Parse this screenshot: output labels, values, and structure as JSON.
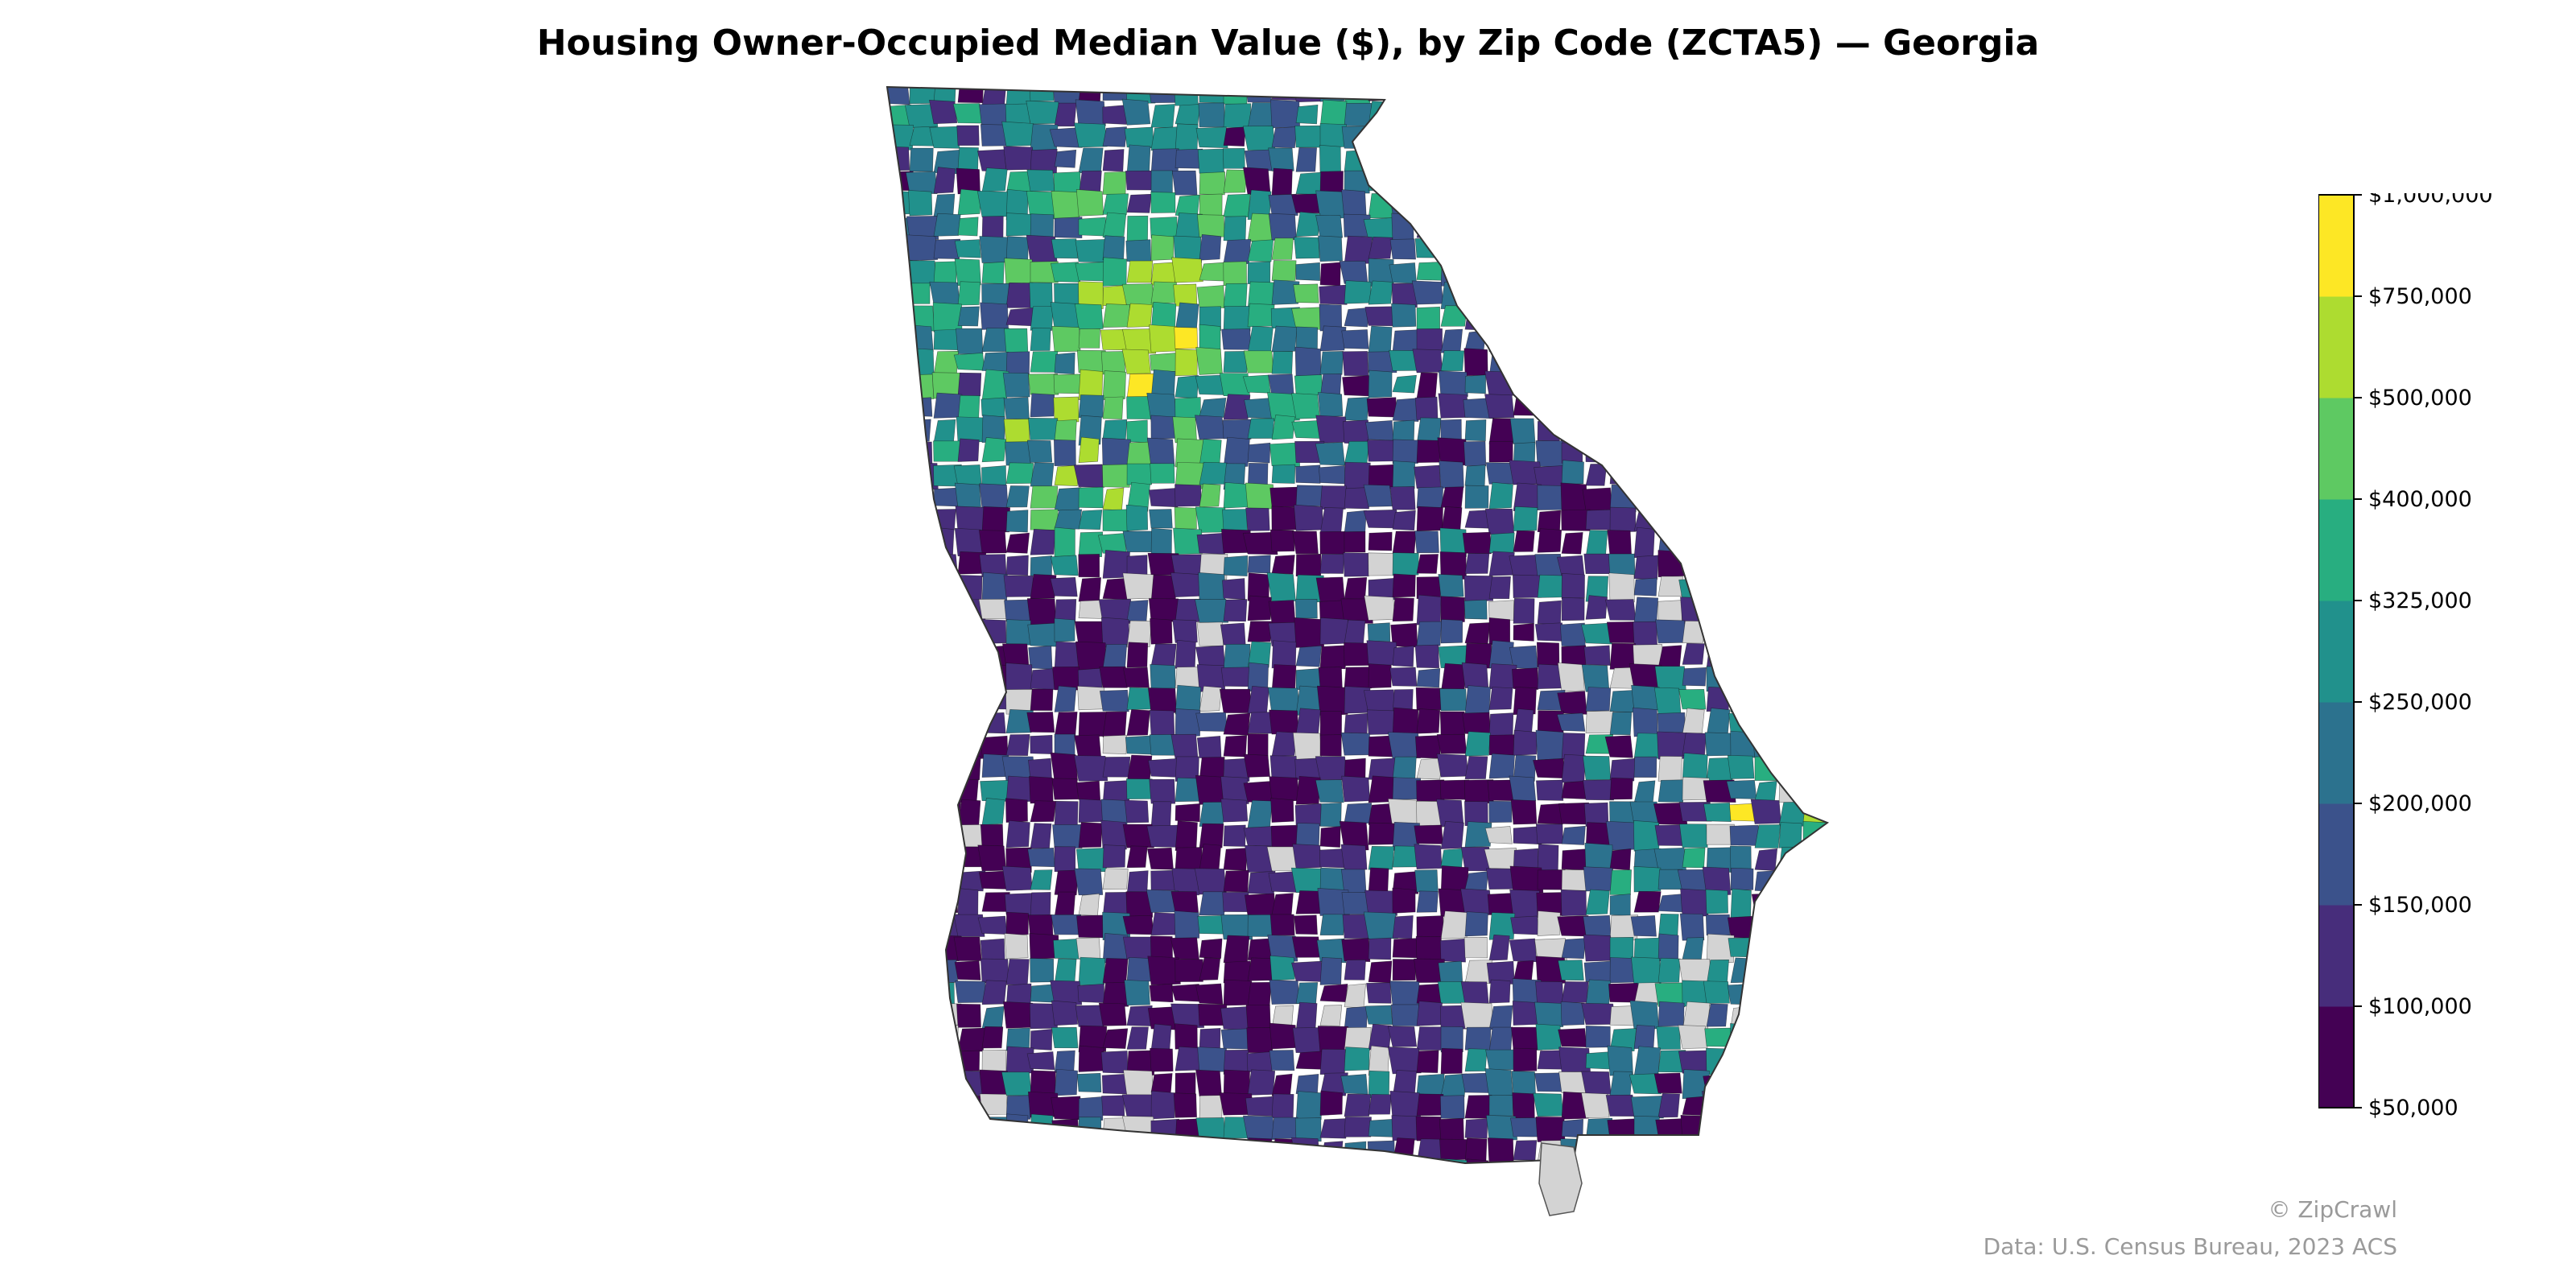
{
  "title": "Housing Owner-Occupied Median Value ($), by Zip Code (ZCTA5) — Georgia",
  "map": {
    "region": "Georgia",
    "no_data_color": "#d3d3d3",
    "border_color": "#000000"
  },
  "legend": {
    "type": "stepped-colorbar",
    "placement": "right",
    "bins": [
      {
        "from": 50000,
        "to": 100000,
        "color": "#440154"
      },
      {
        "from": 100000,
        "to": 150000,
        "color": "#472d7b"
      },
      {
        "from": 150000,
        "to": 200000,
        "color": "#3b528b"
      },
      {
        "from": 200000,
        "to": 250000,
        "color": "#2c728e"
      },
      {
        "from": 250000,
        "to": 325000,
        "color": "#21918c"
      },
      {
        "from": 325000,
        "to": 400000,
        "color": "#28ae80"
      },
      {
        "from": 400000,
        "to": 500000,
        "color": "#5ec962"
      },
      {
        "from": 500000,
        "to": 750000,
        "color": "#addc30"
      },
      {
        "from": 750000,
        "to": 1000000,
        "color": "#fde725"
      }
    ],
    "tick_labels": [
      "$50,000",
      "$100,000",
      "$150,000",
      "$200,000",
      "$250,000",
      "$325,000",
      "$400,000",
      "$500,000",
      "$750,000",
      "$1,000,000"
    ]
  },
  "credits": {
    "brand": "© ZipCrawl",
    "source": "Data: U.S. Census Bureau, 2023 ACS"
  }
}
